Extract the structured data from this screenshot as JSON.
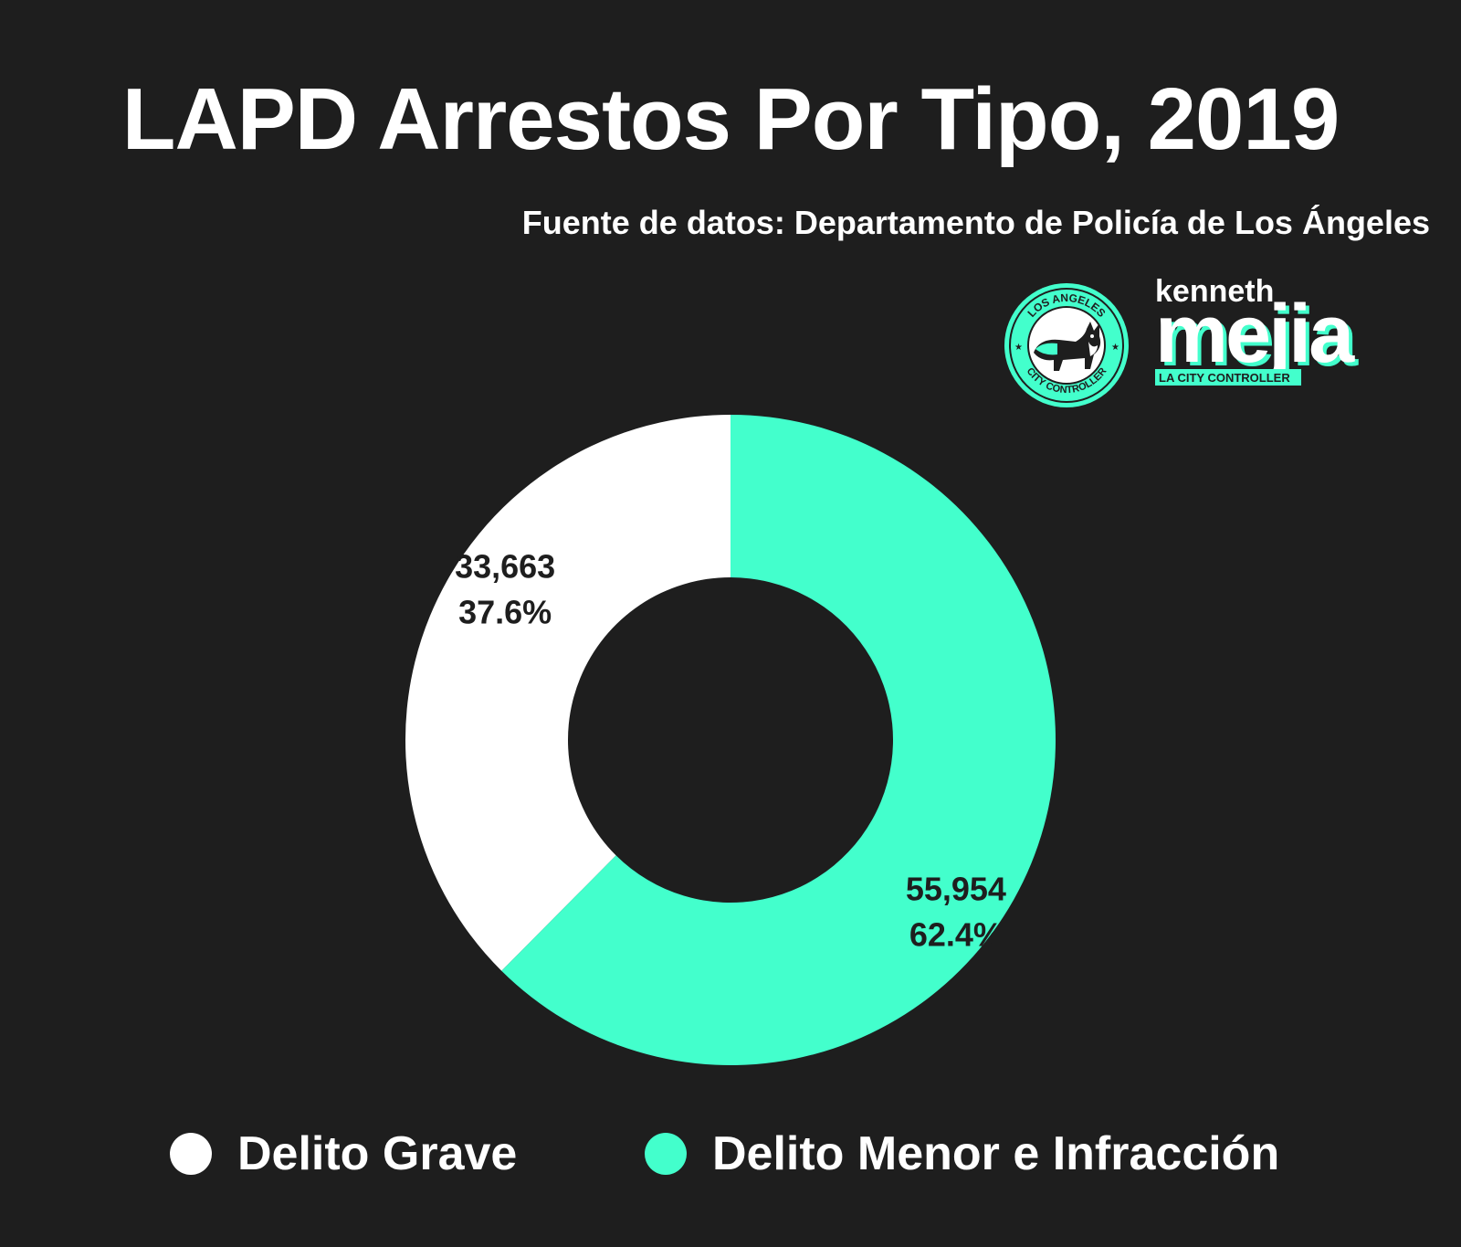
{
  "header": {
    "title": "LAPD Arrestos Por Tipo, 2019",
    "subtitle": "Fuente de datos: Departamento de Policía de Los Ángeles"
  },
  "branding": {
    "seal_top_text": "LOS ANGELES",
    "seal_bottom_text": "CITY CONTROLLER",
    "wordmark_small": "kenneth",
    "wordmark_large": "mejia",
    "wordmark_tagline": "LA CITY CONTROLLER"
  },
  "colors": {
    "background": "#1e1e1e",
    "felony": "#ffffff",
    "misdemeanor": "#43ffcc",
    "label_text": "#1e1e1e"
  },
  "chart_data": {
    "type": "pie",
    "donut": true,
    "title": "LAPD Arrestos Por Tipo, 2019",
    "subtitle": "Fuente de datos: Departamento de Policía de Los Ángeles",
    "legend_position": "bottom",
    "categories": [
      "Delito Grave",
      "Delito Menor e Infracción"
    ],
    "values": [
      33663,
      55954
    ],
    "value_labels": [
      "33,663",
      "55,954"
    ],
    "percent_labels": [
      "37.6%",
      "62.4%"
    ],
    "colors": [
      "#ffffff",
      "#43ffcc"
    ]
  }
}
